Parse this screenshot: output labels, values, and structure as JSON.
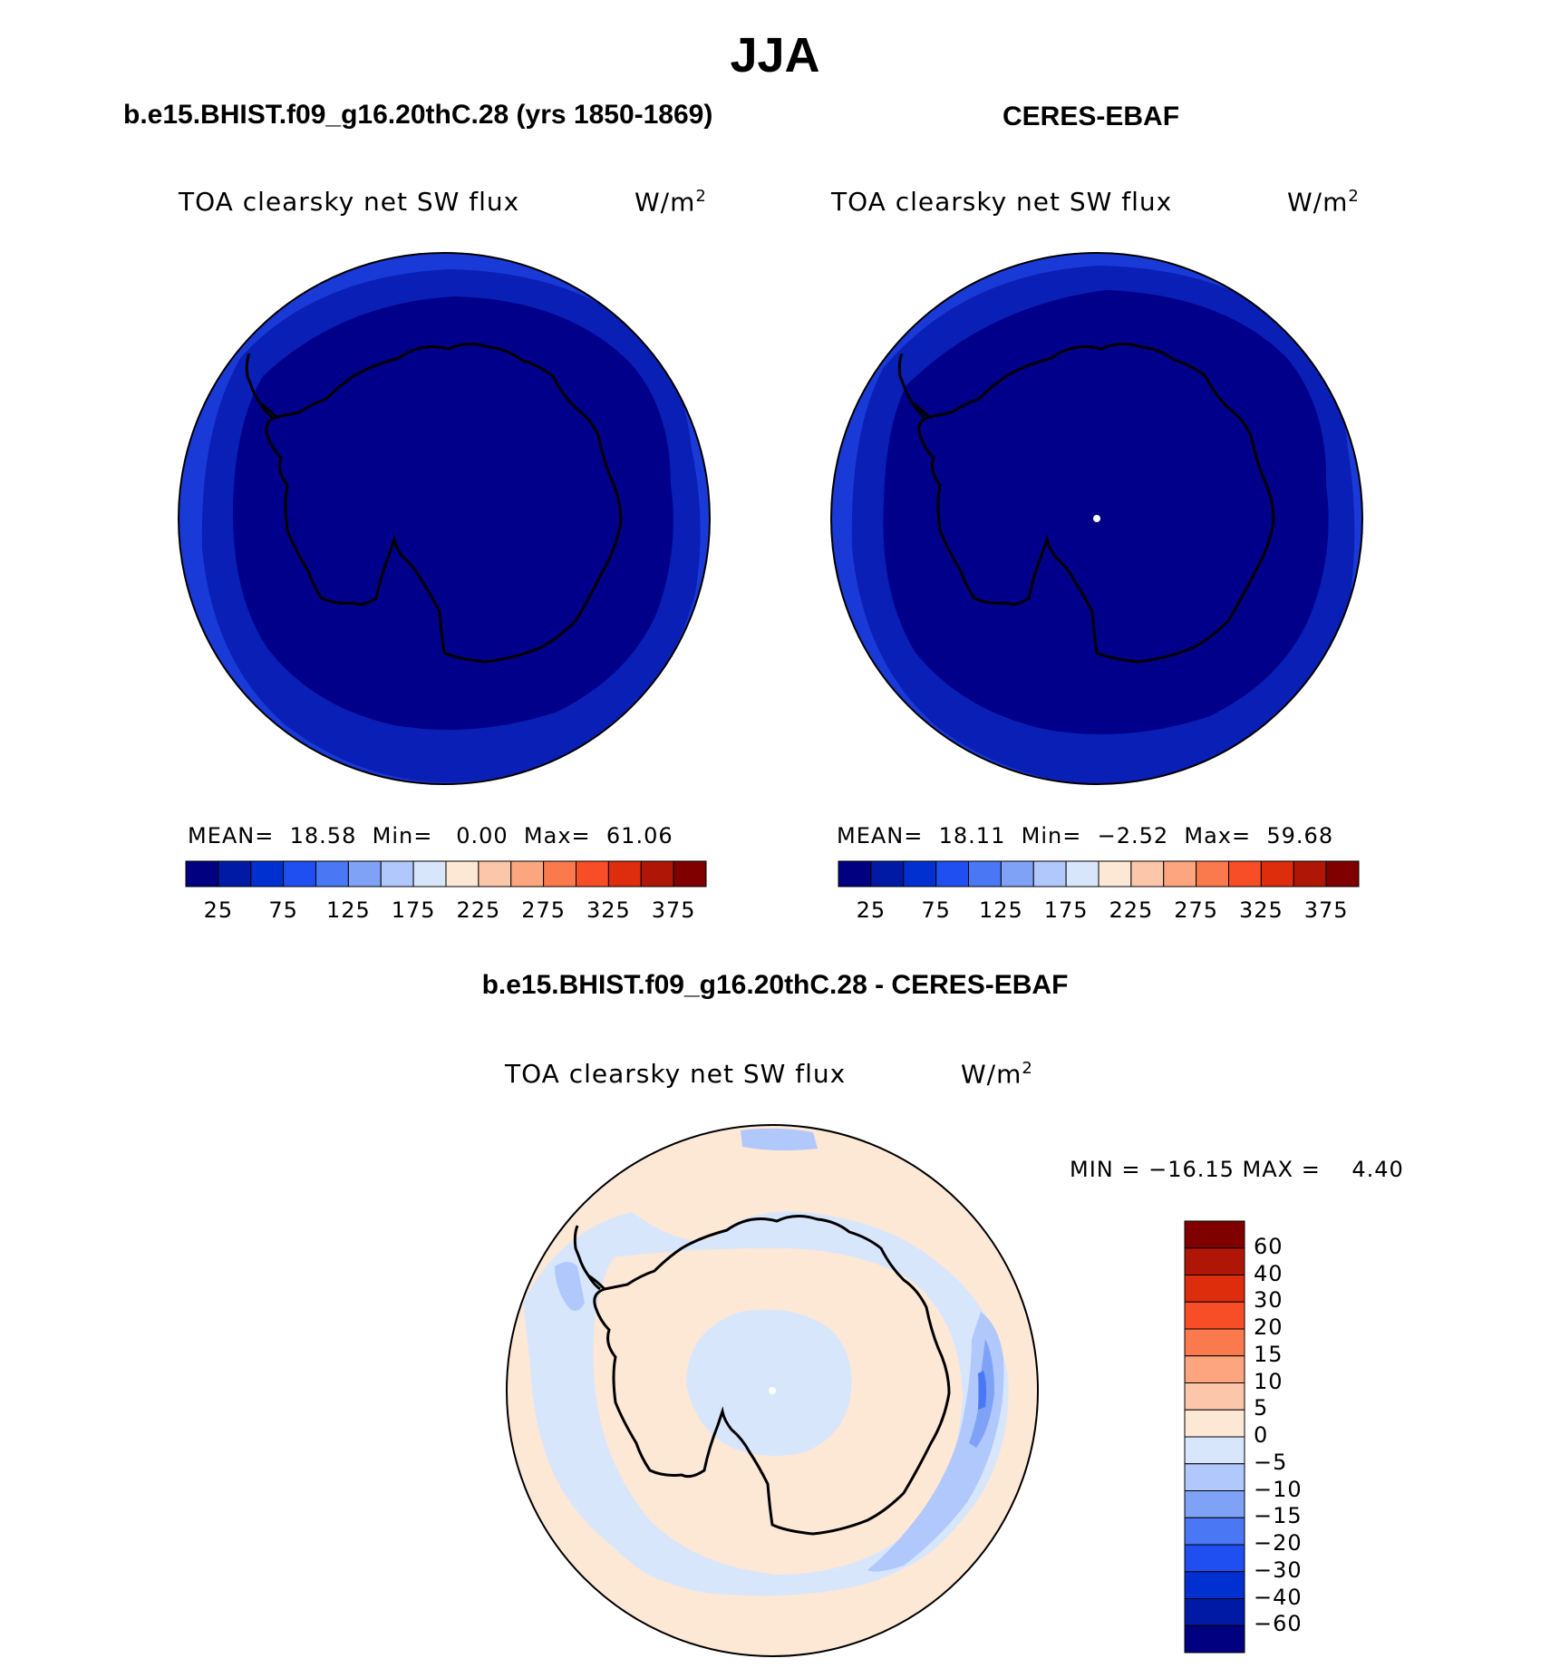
{
  "title": "JJA",
  "panels": [
    {
      "title": "b.e15.BHIST.f09_g16.20thC.28 (yrs 1850-1869)",
      "variable": "TOA clearsky net SW flux",
      "units": "W/m",
      "units_exp": "2",
      "stats": {
        "mean_label": "MEAN=",
        "mean": "18.58",
        "min_label": "Min=",
        "min": "0.00",
        "max_label": "Max=",
        "max": "61.06"
      }
    },
    {
      "title": "CERES-EBAF",
      "variable": "TOA clearsky net SW flux",
      "units": "W/m",
      "units_exp": "2",
      "stats": {
        "mean_label": "MEAN=",
        "mean": "18.11",
        "min_label": "Min=",
        "min": "−2.52",
        "max_label": "Max=",
        "max": "59.68"
      }
    }
  ],
  "colorbar_h": {
    "colors": [
      "#000080",
      "#001aa6",
      "#0030d0",
      "#1f4ff0",
      "#4a78f5",
      "#7fa2f7",
      "#b0c8fb",
      "#d8e6fc",
      "#fde8d6",
      "#fcc6aa",
      "#fca57f",
      "#fb7a4d",
      "#f84e28",
      "#de2d0c",
      "#b01606",
      "#800000"
    ],
    "ticks": [
      "25",
      "75",
      "125",
      "175",
      "225",
      "275",
      "325",
      "375"
    ]
  },
  "difference": {
    "title": "b.e15.BHIST.f09_g16.20thC.28 - CERES-EBAF",
    "variable": "TOA clearsky net SW flux",
    "units": "W/m",
    "units_exp": "2",
    "minmax": "MIN = −16.15 MAX =    4.40",
    "colorbar": {
      "colors_top_to_bottom": [
        "#800000",
        "#b01606",
        "#de2d0c",
        "#f84e28",
        "#fb7a4d",
        "#fca57f",
        "#fcc6aa",
        "#fde8d6",
        "#d8e6fc",
        "#b0c8fb",
        "#7fa2f7",
        "#4a78f5",
        "#1f4ff0",
        "#0030d0",
        "#001aa6",
        "#000080"
      ],
      "ticks_top_to_bottom": [
        "60",
        "40",
        "30",
        "20",
        "15",
        "10",
        "5",
        "0",
        "−5",
        "−10",
        "−15",
        "−20",
        "−30",
        "−40",
        "−60"
      ]
    }
  },
  "map_colors": {
    "deep": "#00008a",
    "mid": "#0a1fb5",
    "outer": "#1a3ad8",
    "diff_pos": "#fde8d6",
    "diff_neg": "#d8e6fc",
    "diff_neg2": "#b0c8fb",
    "diff_neg3": "#7fa2f7",
    "diff_neg4": "#4a78f5"
  }
}
